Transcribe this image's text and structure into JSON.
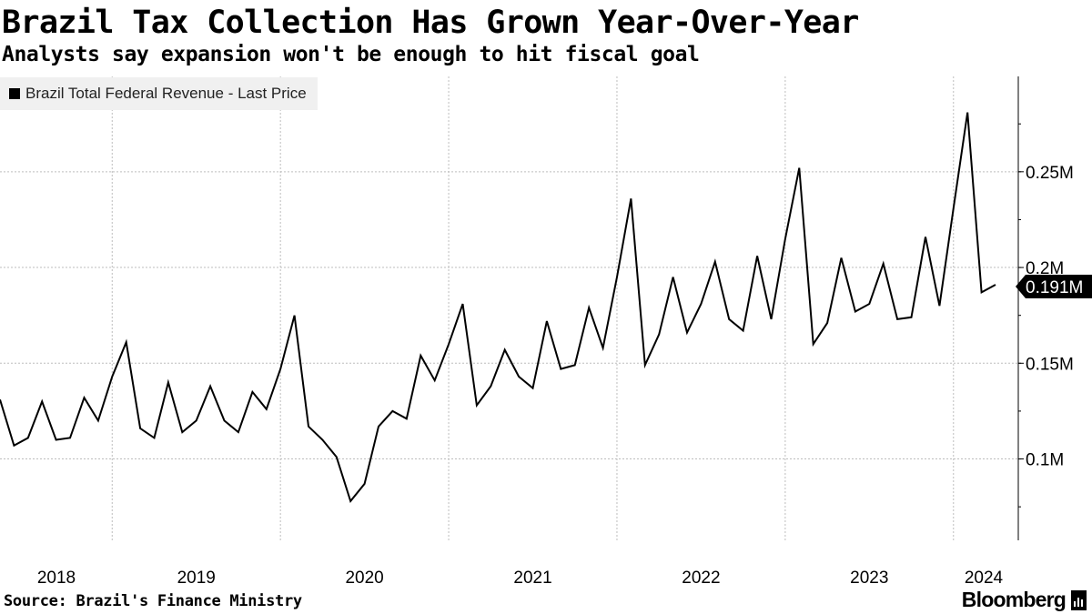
{
  "header": {
    "title": "Brazil Tax Collection Has Grown Year-Over-Year",
    "subtitle": "Analysts say expansion won't be enough to hit fiscal goal"
  },
  "footer": {
    "source": "Source: Brazil's Finance Ministry",
    "brand": "Bloomberg"
  },
  "colors": {
    "line": "#000000",
    "grid": "#bdbdbd",
    "legend_bg": "#f0f0f0"
  },
  "chart_data": {
    "type": "line",
    "title": "Brazil Tax Collection Has Grown Year-Over-Year",
    "series": [
      {
        "name": "Brazil Total Federal Revenue - Last Price",
        "unit": "M",
        "last_label": "0.191M",
        "values": [
          0.131,
          0.107,
          0.111,
          0.13,
          0.11,
          0.111,
          0.132,
          0.12,
          0.143,
          0.161,
          0.116,
          0.111,
          0.14,
          0.114,
          0.12,
          0.138,
          0.12,
          0.114,
          0.135,
          0.126,
          0.147,
          0.175,
          0.117,
          0.11,
          0.101,
          0.078,
          0.087,
          0.117,
          0.125,
          0.121,
          0.154,
          0.141,
          0.16,
          0.181,
          0.128,
          0.138,
          0.157,
          0.143,
          0.137,
          0.172,
          0.147,
          0.149,
          0.179,
          0.158,
          0.195,
          0.236,
          0.149,
          0.165,
          0.195,
          0.166,
          0.181,
          0.203,
          0.173,
          0.167,
          0.206,
          0.173,
          0.215,
          0.252,
          0.16,
          0.171,
          0.205,
          0.177,
          0.181,
          0.202,
          0.173,
          0.174,
          0.216,
          0.18,
          0.231,
          0.281,
          0.187,
          0.191
        ]
      }
    ],
    "x_labels": [
      "2018",
      "2019",
      "2020",
      "2021",
      "2022",
      "2023",
      "2024"
    ],
    "y_ticks": [
      {
        "value": 0.1,
        "label": "0.1M"
      },
      {
        "value": 0.15,
        "label": "0.15M"
      },
      {
        "value": 0.2,
        "label": "0.2M"
      },
      {
        "value": 0.25,
        "label": "0.25M"
      }
    ],
    "ylim": [
      0.0575,
      0.2998
    ],
    "legend": "top-left",
    "grid": true
  }
}
